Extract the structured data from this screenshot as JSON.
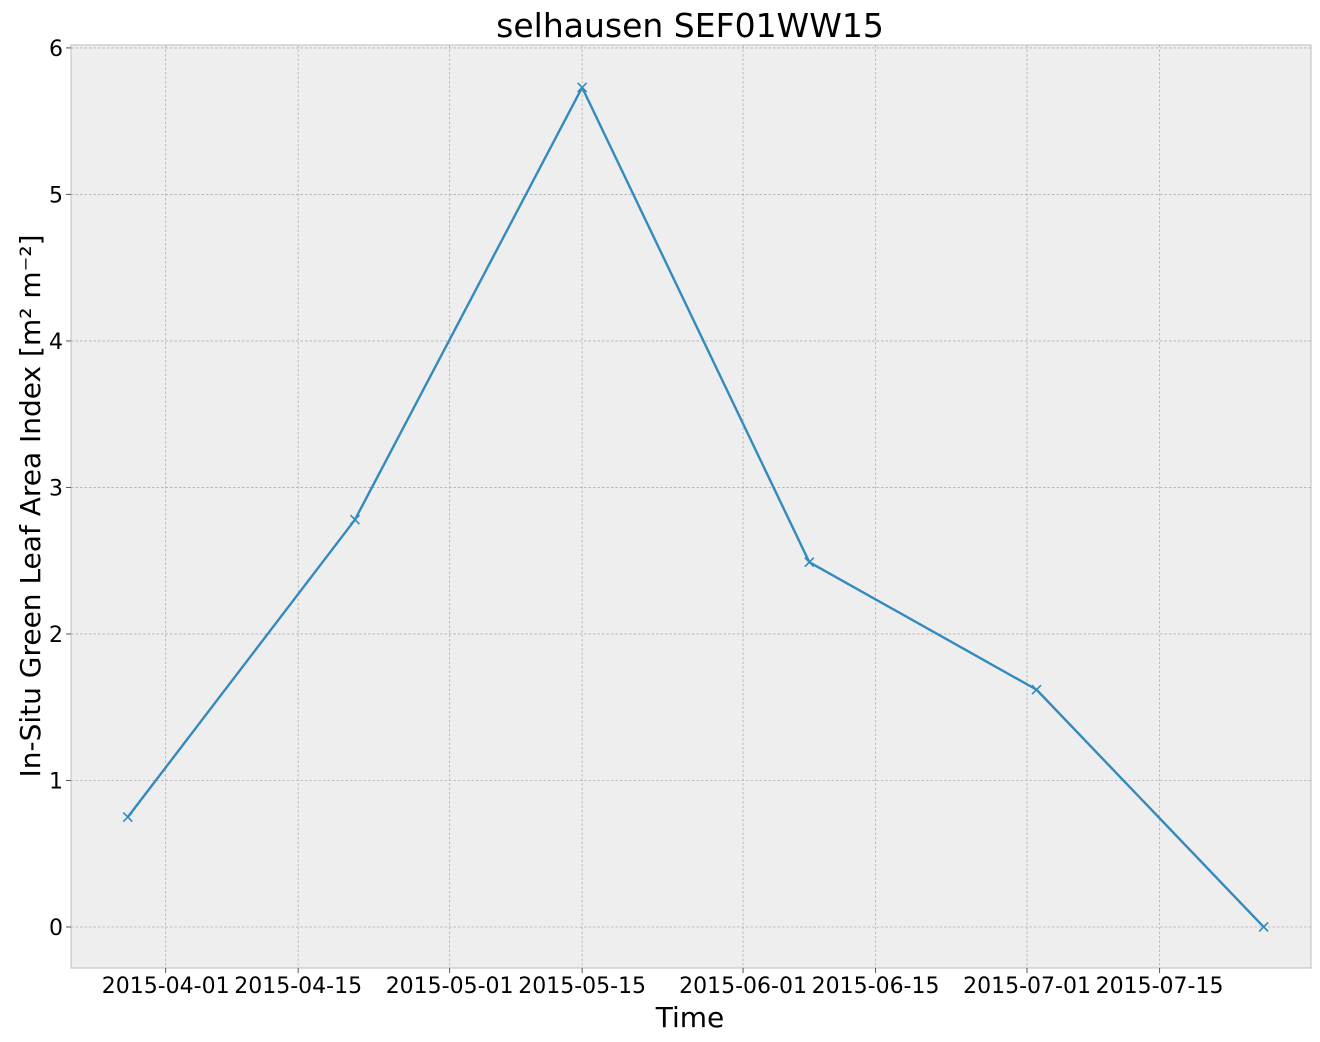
{
  "chart_data": {
    "type": "line",
    "title": "selhausen SEF01WW15",
    "xlabel": "Time",
    "ylabel": "In-Situ Green Leaf Area Index [m² m⁻²]",
    "xlim": [
      "2015-03-22",
      "2015-07-31"
    ],
    "ylim": [
      -0.28,
      6.02
    ],
    "grid": true,
    "legend": "none",
    "x_ticks": [
      "2015-04-01",
      "2015-04-15",
      "2015-05-01",
      "2015-05-15",
      "2015-06-01",
      "2015-06-15",
      "2015-07-01",
      "2015-07-15"
    ],
    "y_ticks": [
      0,
      1,
      2,
      3,
      4,
      5,
      6
    ],
    "series": [
      {
        "color": "#348abd",
        "marker": "x",
        "x": [
          "2015-03-28",
          "2015-04-21",
          "2015-05-15",
          "2015-06-08",
          "2015-07-02",
          "2015-07-26"
        ],
        "values": [
          0.75,
          2.78,
          5.73,
          2.49,
          1.62,
          0.0
        ]
      }
    ]
  }
}
